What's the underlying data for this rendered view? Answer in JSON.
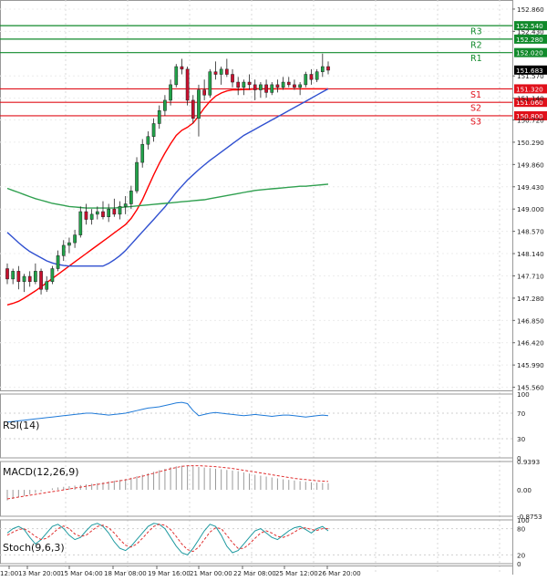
{
  "chart_data": {
    "type": "candlestick",
    "price_axis": {
      "ticks": [
        152.86,
        152.43,
        151.57,
        151.14,
        150.72,
        150.29,
        149.86,
        149.43,
        149.0,
        148.57,
        148.14,
        147.71,
        147.28,
        146.85,
        146.42,
        145.99,
        145.56
      ],
      "tick_labels": [
        "152.860",
        "152.430",
        "151.570",
        "151.140",
        "150.720",
        "150.290",
        "149.860",
        "149.430",
        "149.000",
        "148.570",
        "148.140",
        "147.710",
        "147.280",
        "146.850",
        "146.420",
        "145.990",
        "145.560"
      ],
      "range": [
        145.5,
        153.0
      ],
      "current_price": 151.683,
      "current_price_label": "151.683"
    },
    "time_axis": {
      "labels": [
        "12:00",
        "13 Mar 20:00",
        "15 Mar 04:00",
        "18 Mar 08:00",
        "19 Mar 16:00",
        "21 Mar 00:00",
        "22 Mar 08:00",
        "25 Mar 12:00",
        "26 Mar 20:00"
      ]
    },
    "levels": [
      {
        "name": "R3",
        "value": 152.54,
        "label": "152.540",
        "type": "resistance"
      },
      {
        "name": "R2",
        "value": 152.28,
        "label": "152.280",
        "type": "resistance"
      },
      {
        "name": "R1",
        "value": 152.02,
        "label": "152.020",
        "type": "resistance"
      },
      {
        "name": "S1",
        "value": 151.32,
        "label": "151.320",
        "type": "support"
      },
      {
        "name": "S2",
        "value": 151.06,
        "label": "151.060",
        "type": "support"
      },
      {
        "name": "S3",
        "value": 150.8,
        "label": "150.800",
        "type": "support"
      }
    ],
    "candles": [
      {
        "o": 147.85,
        "h": 147.95,
        "l": 147.55,
        "c": 147.65
      },
      {
        "o": 147.65,
        "h": 147.85,
        "l": 147.55,
        "c": 147.8
      },
      {
        "o": 147.8,
        "h": 147.9,
        "l": 147.45,
        "c": 147.6
      },
      {
        "o": 147.6,
        "h": 147.75,
        "l": 147.4,
        "c": 147.7
      },
      {
        "o": 147.7,
        "h": 147.8,
        "l": 147.5,
        "c": 147.6
      },
      {
        "o": 147.6,
        "h": 147.95,
        "l": 147.55,
        "c": 147.8
      },
      {
        "o": 147.8,
        "h": 147.85,
        "l": 147.35,
        "c": 147.45
      },
      {
        "o": 147.45,
        "h": 147.7,
        "l": 147.4,
        "c": 147.6
      },
      {
        "o": 147.6,
        "h": 147.9,
        "l": 147.55,
        "c": 147.85
      },
      {
        "o": 147.85,
        "h": 148.2,
        "l": 147.8,
        "c": 148.1
      },
      {
        "o": 148.1,
        "h": 148.4,
        "l": 148.0,
        "c": 148.3
      },
      {
        "o": 148.3,
        "h": 148.45,
        "l": 148.15,
        "c": 148.35
      },
      {
        "o": 148.35,
        "h": 148.6,
        "l": 148.25,
        "c": 148.5
      },
      {
        "o": 148.5,
        "h": 149.05,
        "l": 148.45,
        "c": 148.95
      },
      {
        "o": 148.95,
        "h": 149.1,
        "l": 148.7,
        "c": 148.8
      },
      {
        "o": 148.8,
        "h": 149.0,
        "l": 148.7,
        "c": 148.9
      },
      {
        "o": 148.9,
        "h": 149.05,
        "l": 148.8,
        "c": 148.95
      },
      {
        "o": 148.95,
        "h": 149.15,
        "l": 148.8,
        "c": 148.85
      },
      {
        "o": 148.85,
        "h": 149.1,
        "l": 148.75,
        "c": 149.0
      },
      {
        "o": 149.0,
        "h": 149.2,
        "l": 148.85,
        "c": 148.9
      },
      {
        "o": 148.9,
        "h": 149.15,
        "l": 148.8,
        "c": 149.05
      },
      {
        "o": 149.05,
        "h": 149.25,
        "l": 148.9,
        "c": 149.1
      },
      {
        "o": 149.1,
        "h": 149.45,
        "l": 149.0,
        "c": 149.35
      },
      {
        "o": 149.35,
        "h": 150.0,
        "l": 149.3,
        "c": 149.9
      },
      {
        "o": 149.9,
        "h": 150.35,
        "l": 149.8,
        "c": 150.25
      },
      {
        "o": 150.25,
        "h": 150.5,
        "l": 150.15,
        "c": 150.4
      },
      {
        "o": 150.4,
        "h": 150.75,
        "l": 150.3,
        "c": 150.65
      },
      {
        "o": 150.65,
        "h": 151.0,
        "l": 150.55,
        "c": 150.9
      },
      {
        "o": 150.9,
        "h": 151.2,
        "l": 150.8,
        "c": 151.1
      },
      {
        "o": 151.1,
        "h": 151.5,
        "l": 151.0,
        "c": 151.4
      },
      {
        "o": 151.4,
        "h": 151.8,
        "l": 151.35,
        "c": 151.75
      },
      {
        "o": 151.75,
        "h": 151.9,
        "l": 151.6,
        "c": 151.7
      },
      {
        "o": 151.7,
        "h": 151.75,
        "l": 151.0,
        "c": 151.1
      },
      {
        "o": 151.1,
        "h": 151.2,
        "l": 150.65,
        "c": 150.75
      },
      {
        "o": 150.75,
        "h": 151.4,
        "l": 150.4,
        "c": 151.3
      },
      {
        "o": 151.3,
        "h": 151.5,
        "l": 151.1,
        "c": 151.2
      },
      {
        "o": 151.2,
        "h": 151.7,
        "l": 151.15,
        "c": 151.65
      },
      {
        "o": 151.65,
        "h": 151.85,
        "l": 151.5,
        "c": 151.6
      },
      {
        "o": 151.6,
        "h": 151.75,
        "l": 151.4,
        "c": 151.7
      },
      {
        "o": 151.7,
        "h": 151.9,
        "l": 151.55,
        "c": 151.6
      },
      {
        "o": 151.6,
        "h": 151.7,
        "l": 151.35,
        "c": 151.45
      },
      {
        "o": 151.45,
        "h": 151.55,
        "l": 151.2,
        "c": 151.35
      },
      {
        "o": 151.35,
        "h": 151.5,
        "l": 151.2,
        "c": 151.45
      },
      {
        "o": 151.45,
        "h": 151.6,
        "l": 151.3,
        "c": 151.4
      },
      {
        "o": 151.4,
        "h": 151.5,
        "l": 151.1,
        "c": 151.3
      },
      {
        "o": 151.3,
        "h": 151.45,
        "l": 151.15,
        "c": 151.4
      },
      {
        "o": 151.4,
        "h": 151.5,
        "l": 151.15,
        "c": 151.25
      },
      {
        "o": 151.25,
        "h": 151.45,
        "l": 151.2,
        "c": 151.4
      },
      {
        "o": 151.4,
        "h": 151.5,
        "l": 151.25,
        "c": 151.35
      },
      {
        "o": 151.35,
        "h": 151.55,
        "l": 151.3,
        "c": 151.45
      },
      {
        "o": 151.45,
        "h": 151.55,
        "l": 151.35,
        "c": 151.4
      },
      {
        "o": 151.4,
        "h": 151.5,
        "l": 151.3,
        "c": 151.35
      },
      {
        "o": 151.35,
        "h": 151.45,
        "l": 151.2,
        "c": 151.4
      },
      {
        "o": 151.4,
        "h": 151.65,
        "l": 151.35,
        "c": 151.6
      },
      {
        "o": 151.6,
        "h": 151.7,
        "l": 151.4,
        "c": 151.5
      },
      {
        "o": 151.5,
        "h": 151.7,
        "l": 151.45,
        "c": 151.65
      },
      {
        "o": 151.65,
        "h": 152.0,
        "l": 151.55,
        "c": 151.75
      },
      {
        "o": 151.75,
        "h": 151.85,
        "l": 151.6,
        "c": 151.68
      }
    ],
    "overlays": [
      {
        "name": "fast-ma",
        "color": "#ff0000",
        "values": [
          147.15,
          147.18,
          147.22,
          147.28,
          147.35,
          147.42,
          147.5,
          147.58,
          147.66,
          147.74,
          147.82,
          147.9,
          147.98,
          148.06,
          148.14,
          148.22,
          148.3,
          148.38,
          148.46,
          148.54,
          148.62,
          148.7,
          148.82,
          148.98,
          149.18,
          149.42,
          149.66,
          149.88,
          150.08,
          150.26,
          150.42,
          150.52,
          150.58,
          150.66,
          150.8,
          150.95,
          151.08,
          151.18,
          151.24,
          151.28,
          151.3,
          151.3,
          151.31,
          151.31,
          151.32,
          151.32,
          151.32,
          151.32,
          151.32,
          151.32,
          151.32,
          151.32,
          151.32,
          151.32,
          151.32,
          151.32,
          151.32,
          151.32
        ]
      },
      {
        "name": "slow-ma",
        "color": "#3050d0",
        "values": [
          148.55,
          148.45,
          148.35,
          148.26,
          148.18,
          148.12,
          148.06,
          148.0,
          147.96,
          147.93,
          147.91,
          147.9,
          147.9,
          147.9,
          147.9,
          147.9,
          147.9,
          147.9,
          147.95,
          148.02,
          148.1,
          148.2,
          148.32,
          148.44,
          148.56,
          148.68,
          148.8,
          148.92,
          149.04,
          149.18,
          149.32,
          149.44,
          149.56,
          149.66,
          149.76,
          149.85,
          149.94,
          150.02,
          150.1,
          150.18,
          150.26,
          150.34,
          150.42,
          150.48,
          150.54,
          150.6,
          150.66,
          150.72,
          150.78,
          150.84,
          150.9,
          150.96,
          151.02,
          151.08,
          151.14,
          151.2,
          151.26,
          151.32
        ]
      },
      {
        "name": "long-ma",
        "color": "#30a050",
        "values": [
          149.4,
          149.36,
          149.32,
          149.28,
          149.24,
          149.2,
          149.17,
          149.14,
          149.11,
          149.09,
          149.07,
          149.05,
          149.04,
          149.03,
          149.02,
          149.02,
          149.02,
          149.02,
          149.02,
          149.02,
          149.03,
          149.04,
          149.05,
          149.06,
          149.07,
          149.08,
          149.09,
          149.1,
          149.11,
          149.12,
          149.13,
          149.14,
          149.15,
          149.16,
          149.17,
          149.18,
          149.2,
          149.22,
          149.24,
          149.26,
          149.28,
          149.3,
          149.32,
          149.34,
          149.36,
          149.37,
          149.38,
          149.39,
          149.4,
          149.41,
          149.42,
          149.43,
          149.44,
          149.44,
          149.45,
          149.46,
          149.47,
          149.48
        ]
      }
    ],
    "rsi": {
      "label": "RSI(14)",
      "ticks": [
        100,
        70,
        30,
        0
      ],
      "tick_labels": [
        "100",
        "70",
        "30",
        "0"
      ],
      "values": [
        56,
        57,
        58,
        59,
        60,
        61,
        62,
        63,
        64,
        65,
        66,
        67,
        68,
        69,
        70,
        70,
        69,
        68,
        67,
        68,
        69,
        70,
        72,
        74,
        76,
        78,
        79,
        80,
        82,
        84,
        86,
        87,
        85,
        74,
        66,
        68,
        70,
        71,
        70,
        69,
        68,
        67,
        66,
        67,
        68,
        67,
        66,
        65,
        66,
        67,
        67,
        66,
        65,
        64,
        65,
        66,
        67,
        66
      ]
    },
    "macd": {
      "label": "MACD(12,26,9)",
      "ticks": [
        0.9393,
        0.0,
        -0.8753
      ],
      "tick_labels": [
        "0.9393",
        "0.00",
        "-0.8753"
      ],
      "histogram": [
        -0.35,
        -0.3,
        -0.25,
        -0.2,
        -0.15,
        -0.1,
        -0.05,
        0.0,
        0.05,
        0.08,
        0.1,
        0.12,
        0.14,
        0.16,
        0.18,
        0.2,
        0.22,
        0.25,
        0.28,
        0.3,
        0.33,
        0.36,
        0.4,
        0.45,
        0.5,
        0.55,
        0.6,
        0.65,
        0.7,
        0.75,
        0.78,
        0.8,
        0.8,
        0.78,
        0.76,
        0.74,
        0.72,
        0.7,
        0.68,
        0.66,
        0.64,
        0.62,
        0.58,
        0.54,
        0.5,
        0.47,
        0.44,
        0.41,
        0.38,
        0.35,
        0.33,
        0.31,
        0.29,
        0.27,
        0.25,
        0.24,
        0.23,
        0.22
      ],
      "signal": [
        -0.3,
        -0.27,
        -0.24,
        -0.21,
        -0.18,
        -0.15,
        -0.12,
        -0.09,
        -0.06,
        -0.03,
        0.0,
        0.03,
        0.06,
        0.09,
        0.12,
        0.15,
        0.18,
        0.21,
        0.24,
        0.27,
        0.3,
        0.33,
        0.37,
        0.41,
        0.45,
        0.5,
        0.55,
        0.6,
        0.65,
        0.7,
        0.74,
        0.78,
        0.8,
        0.8,
        0.8,
        0.79,
        0.78,
        0.77,
        0.75,
        0.73,
        0.71,
        0.68,
        0.65,
        0.62,
        0.59,
        0.56,
        0.53,
        0.5,
        0.47,
        0.44,
        0.41,
        0.38,
        0.36,
        0.34,
        0.32,
        0.3,
        0.29,
        0.28
      ]
    },
    "stoch": {
      "label": "Stoch(9,6,3)",
      "ticks": [
        100,
        80,
        20,
        0
      ],
      "tick_labels": [
        "100",
        "80",
        "20",
        "0"
      ],
      "k": [
        70,
        80,
        85,
        78,
        60,
        45,
        55,
        70,
        85,
        90,
        80,
        65,
        55,
        60,
        75,
        88,
        92,
        85,
        70,
        50,
        35,
        30,
        40,
        55,
        70,
        85,
        92,
        90,
        80,
        60,
        40,
        25,
        20,
        35,
        55,
        75,
        90,
        85,
        65,
        40,
        25,
        30,
        45,
        60,
        75,
        80,
        70,
        60,
        55,
        65,
        75,
        82,
        85,
        78,
        70,
        80,
        85,
        75
      ],
      "d": [
        65,
        72,
        78,
        80,
        72,
        62,
        55,
        58,
        68,
        80,
        86,
        80,
        68,
        62,
        65,
        75,
        85,
        88,
        82,
        70,
        55,
        42,
        38,
        45,
        58,
        72,
        85,
        90,
        88,
        78,
        62,
        45,
        32,
        28,
        38,
        55,
        72,
        82,
        80,
        65,
        48,
        35,
        35,
        45,
        58,
        70,
        75,
        70,
        62,
        60,
        65,
        72,
        80,
        82,
        78,
        76,
        80,
        80
      ]
    },
    "colors": {
      "bull": "#21a249",
      "bear": "#c8102e",
      "resistance": "#118a2b",
      "support": "#e0101a",
      "price_tag": "#000000",
      "indicator": "#1f7ad8",
      "signal": "#e03030"
    }
  }
}
